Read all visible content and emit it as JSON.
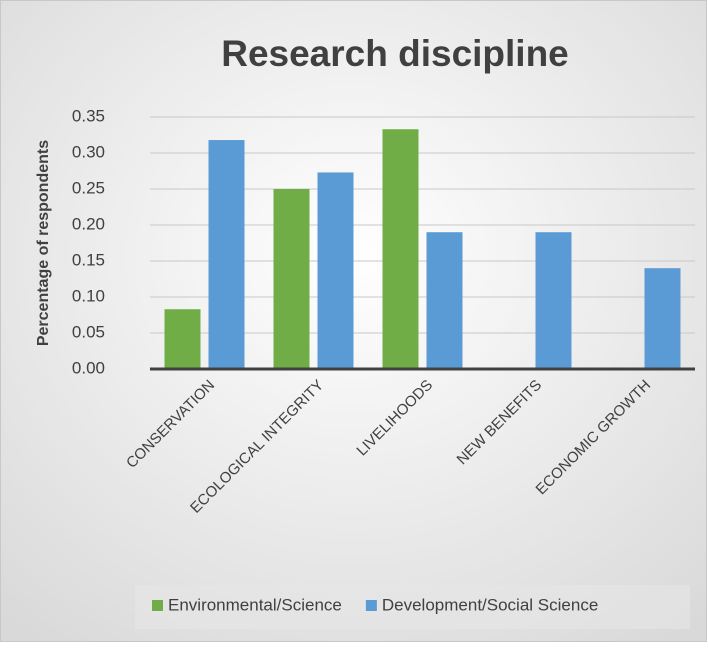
{
  "chart_data": {
    "type": "bar",
    "title": "Research discipline",
    "ylabel": "Percentage of respondents",
    "categories": [
      "CONSERVATION",
      "ECOLOGICAL INTEGRITY",
      "LIVELIHOODS",
      "NEW BENEFITS",
      "ECONOMIC GROWTH"
    ],
    "series": [
      {
        "name": "Environmental/Science",
        "color": "#70ad47",
        "values": [
          0.083,
          0.25,
          0.333,
          0,
          0
        ]
      },
      {
        "name": "Development/Social Science",
        "color": "#5b9bd5",
        "values": [
          0.318,
          0.273,
          0.19,
          0.19,
          0.14
        ]
      }
    ],
    "ylim": [
      0,
      0.35
    ],
    "yticks": [
      {
        "value": 0,
        "label": "0.00"
      },
      {
        "value": 0.05,
        "label": "0.05"
      },
      {
        "value": 0.1,
        "label": "0.10"
      },
      {
        "value": 0.15,
        "label": "0.15"
      },
      {
        "value": 0.2,
        "label": "0.20"
      },
      {
        "value": 0.25,
        "label": "0.25"
      },
      {
        "value": 0.3,
        "label": "0.30"
      },
      {
        "value": 0.35,
        "label": "0.35"
      }
    ],
    "grid": true,
    "legend": "bottom"
  }
}
